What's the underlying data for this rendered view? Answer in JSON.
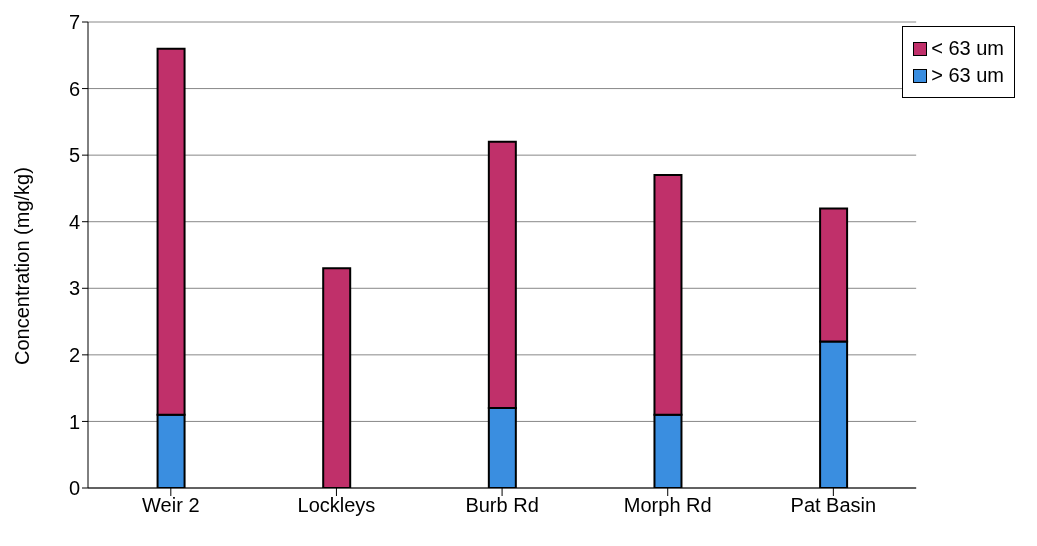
{
  "chart_data": {
    "type": "bar",
    "stacked": true,
    "ylabel": "Concentration (mg/kg)",
    "categories": [
      "Weir 2",
      "Lockleys",
      "Burb Rd",
      "Morph Rd",
      "Pat Basin"
    ],
    "series": [
      {
        "name": "> 63 um",
        "color": "#3a8ee0",
        "values": [
          1.1,
          0,
          1.2,
          1.1,
          2.2
        ]
      },
      {
        "name": "< 63 um",
        "color": "#c0306a",
        "values": [
          5.5,
          3.3,
          4.0,
          3.6,
          2.0
        ]
      }
    ],
    "ylim": [
      0,
      7
    ],
    "yticks": [
      0,
      1,
      2,
      3,
      4,
      5,
      6,
      7
    ],
    "grid": "y",
    "legend": "top right"
  }
}
